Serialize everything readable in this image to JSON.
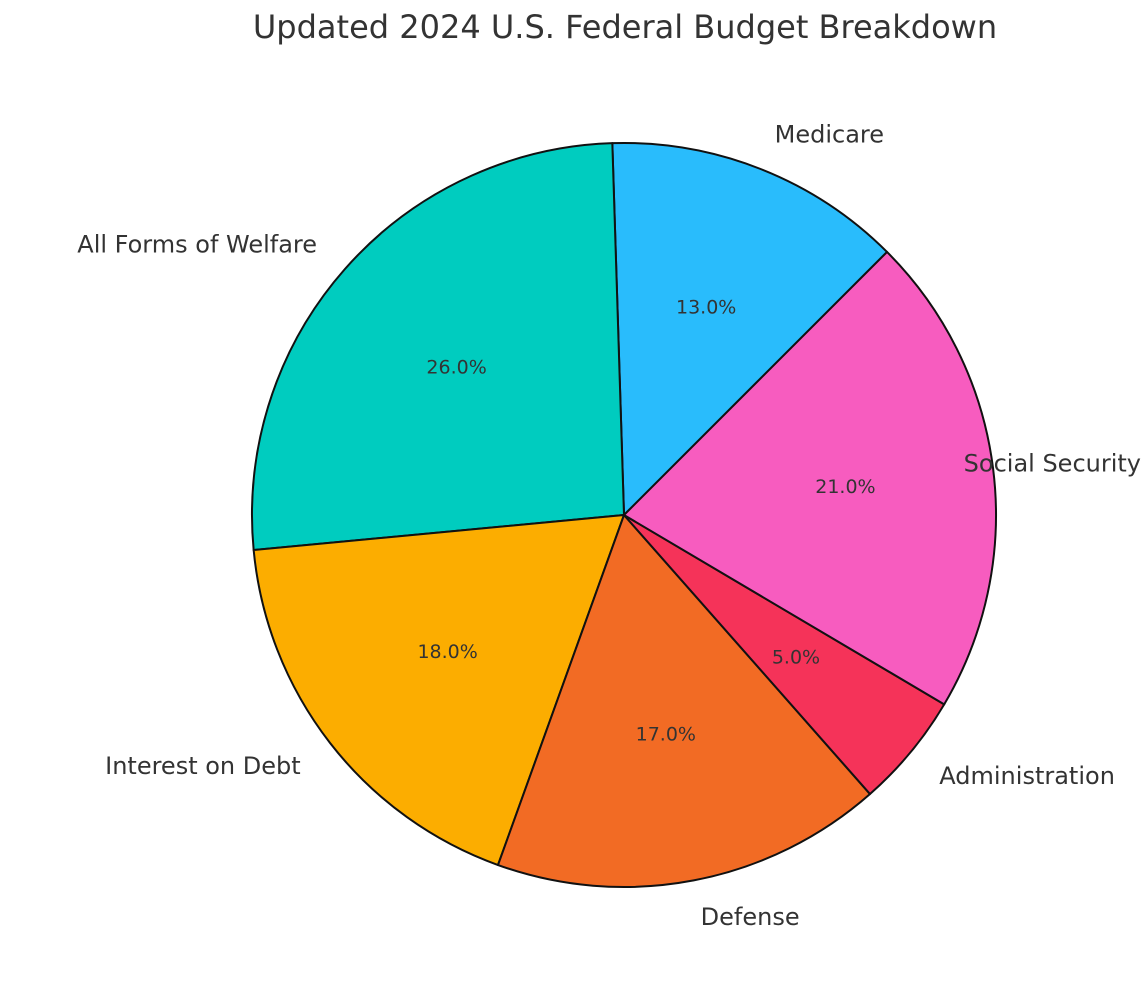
{
  "chart_data": {
    "type": "pie",
    "title": "Updated 2024 U.S. Federal Budget Breakdown",
    "start_angle_deg": 45,
    "direction": "counterclockwise",
    "legend": "none",
    "slices": [
      {
        "label": "Medicare",
        "value": 13.0,
        "pct_label": "13.0%",
        "color": "#29BCFC"
      },
      {
        "label": "All Forms of Welfare",
        "value": 26.0,
        "pct_label": "26.0%",
        "color": "#00CCBF"
      },
      {
        "label": "Interest on Debt",
        "value": 18.0,
        "pct_label": "18.0%",
        "color": "#FCAD00"
      },
      {
        "label": "Defense",
        "value": 17.0,
        "pct_label": "17.0%",
        "color": "#F26B24"
      },
      {
        "label": "Administration",
        "value": 5.0,
        "pct_label": "5.0%",
        "color": "#F53359"
      },
      {
        "label": "Social Security",
        "value": 21.0,
        "pct_label": "21.0%",
        "color": "#F75CBF"
      }
    ]
  }
}
